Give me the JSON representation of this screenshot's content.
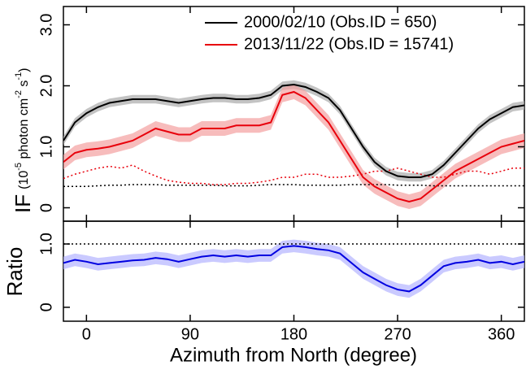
{
  "chart_data": [
    {
      "type": "line",
      "xlim": [
        -20,
        380
      ],
      "ylim": [
        -0.22,
        3.3
      ],
      "xticks": [
        0,
        90,
        180,
        270,
        360
      ],
      "yticks": [
        0,
        {
          "value": 1,
          "label": "1.0"
        },
        {
          "value": 2,
          "label": "2.0"
        },
        {
          "value": 3,
          "label": "3.0"
        }
      ],
      "ylabel": {
        "main": "IF",
        "unit": [
          "(10",
          "-5",
          " photon cm",
          "-2",
          " s",
          "-1",
          ")"
        ]
      },
      "x": [
        -20,
        -10,
        0,
        10,
        20,
        30,
        40,
        50,
        60,
        70,
        80,
        90,
        100,
        110,
        120,
        130,
        140,
        150,
        160,
        170,
        180,
        190,
        200,
        210,
        220,
        230,
        240,
        250,
        260,
        270,
        280,
        290,
        300,
        310,
        320,
        330,
        340,
        350,
        360,
        370,
        380
      ],
      "series": [
        {
          "name": "2000/02/10 (Obs.ID = 650)",
          "color": "#000000",
          "band_color": "#aaaaaa",
          "band": 0.07,
          "values": [
            1.1,
            1.4,
            1.55,
            1.65,
            1.72,
            1.75,
            1.78,
            1.78,
            1.78,
            1.75,
            1.72,
            1.75,
            1.78,
            1.8,
            1.8,
            1.78,
            1.78,
            1.8,
            1.85,
            2.0,
            2.02,
            1.98,
            1.9,
            1.8,
            1.6,
            1.3,
            1.0,
            0.75,
            0.6,
            0.52,
            0.5,
            0.5,
            0.55,
            0.7,
            0.9,
            1.1,
            1.3,
            1.45,
            1.55,
            1.65,
            1.68
          ]
        },
        {
          "name": "2013/11/22 (Obs.ID = 15741)",
          "color": "#e8000b",
          "band_color": "#f4a0a0",
          "band": 0.12,
          "values": [
            0.75,
            0.9,
            0.95,
            0.97,
            1.0,
            1.05,
            1.1,
            1.2,
            1.3,
            1.25,
            1.2,
            1.2,
            1.3,
            1.3,
            1.3,
            1.35,
            1.35,
            1.35,
            1.4,
            1.85,
            1.9,
            1.8,
            1.6,
            1.4,
            1.1,
            0.8,
            0.5,
            0.35,
            0.25,
            0.15,
            0.1,
            0.15,
            0.3,
            0.45,
            0.6,
            0.7,
            0.8,
            0.9,
            1.0,
            1.05,
            1.1
          ]
        }
      ],
      "background": [
        {
          "color": "#000000",
          "values": [
            0.35,
            0.35,
            0.35,
            0.36,
            0.37,
            0.37,
            0.38,
            0.38,
            0.38,
            0.37,
            0.37,
            0.37,
            0.37,
            0.37,
            0.36,
            0.36,
            0.36,
            0.37,
            0.38,
            0.38,
            0.38,
            0.37,
            0.37,
            0.37,
            0.37,
            0.38,
            0.38,
            0.38,
            0.38,
            0.37,
            0.37,
            0.37,
            0.36,
            0.36,
            0.36,
            0.36,
            0.36,
            0.36,
            0.36,
            0.36,
            0.36
          ]
        },
        {
          "color": "#e8000b",
          "values": [
            0.48,
            0.55,
            0.6,
            0.65,
            0.68,
            0.65,
            0.7,
            0.6,
            0.52,
            0.45,
            0.42,
            0.4,
            0.4,
            0.38,
            0.38,
            0.4,
            0.4,
            0.42,
            0.45,
            0.5,
            0.5,
            0.55,
            0.55,
            0.5,
            0.5,
            0.52,
            0.55,
            0.6,
            0.6,
            0.65,
            0.6,
            0.55,
            0.5,
            0.5,
            0.55,
            0.6,
            0.6,
            0.55,
            0.6,
            0.65,
            0.65
          ]
        }
      ]
    },
    {
      "type": "line",
      "xlim": [
        -20,
        380
      ],
      "ylim": [
        -0.22,
        1.36
      ],
      "xticks": [
        0,
        90,
        180,
        270,
        360
      ],
      "yticks": [
        0,
        {
          "value": 1,
          "label": "1.0"
        }
      ],
      "ylabel": "Ratio",
      "xlabel": "Azimuth from North (degree)",
      "reference_line": 1,
      "x": [
        -20,
        -10,
        0,
        10,
        20,
        30,
        40,
        50,
        60,
        70,
        80,
        90,
        100,
        110,
        120,
        130,
        140,
        150,
        160,
        170,
        180,
        190,
        200,
        210,
        220,
        230,
        240,
        250,
        260,
        270,
        280,
        290,
        300,
        310,
        320,
        330,
        340,
        350,
        360,
        370,
        380
      ],
      "series": [
        {
          "color": "#0000e0",
          "band_color": "#b4b4ff",
          "band": 0.1,
          "values": [
            0.7,
            0.75,
            0.72,
            0.68,
            0.7,
            0.72,
            0.74,
            0.75,
            0.78,
            0.76,
            0.72,
            0.76,
            0.8,
            0.82,
            0.8,
            0.82,
            0.8,
            0.82,
            0.82,
            0.95,
            0.97,
            0.95,
            0.92,
            0.9,
            0.85,
            0.7,
            0.55,
            0.45,
            0.35,
            0.28,
            0.25,
            0.35,
            0.5,
            0.65,
            0.7,
            0.72,
            0.75,
            0.7,
            0.72,
            0.68,
            0.72
          ]
        }
      ]
    }
  ]
}
